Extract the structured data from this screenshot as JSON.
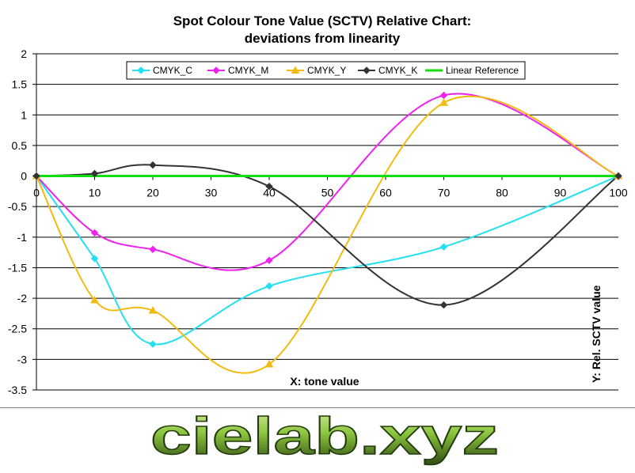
{
  "chart_data": {
    "type": "line",
    "title_lines": [
      "Spot Colour Tone Value (SCTV) Relative Chart:",
      "deviations from linearity"
    ],
    "xlabel": "X: tone value",
    "ylabel": "Y: Rel. SCTV value",
    "xlim": [
      0,
      100
    ],
    "ylim": [
      -3.5,
      2
    ],
    "x_ticks": [
      "0",
      "10",
      "20",
      "30",
      "40",
      "50",
      "60",
      "70",
      "80",
      "90",
      "100"
    ],
    "y_ticks": [
      "2",
      "1.5",
      "1",
      "0.5",
      "0",
      "-0.5",
      "-1",
      "-1.5",
      "-2",
      "-2.5",
      "-3",
      "-3.5"
    ],
    "grid": "horizontal",
    "legend_position": "top",
    "markers_x": [
      0,
      10,
      20,
      40,
      70,
      100
    ],
    "series": [
      {
        "name": "CMYK_C",
        "color": "#22e0f0",
        "marker": "diamond",
        "x": [
          0,
          10,
          20,
          40,
          70,
          100
        ],
        "y": [
          0,
          -1.35,
          -2.75,
          -1.8,
          -1.16,
          0
        ]
      },
      {
        "name": "CMYK_M",
        "color": "#ee22ee",
        "marker": "diamond",
        "x": [
          0,
          10,
          20,
          40,
          70,
          100
        ],
        "y": [
          0,
          -0.93,
          -1.2,
          -1.38,
          1.32,
          0
        ]
      },
      {
        "name": "CMYK_Y",
        "color": "#f2bb11",
        "marker": "triangle",
        "x": [
          0,
          10,
          20,
          40,
          70,
          100
        ],
        "y": [
          0,
          -2.03,
          -2.2,
          -3.08,
          1.2,
          0
        ]
      },
      {
        "name": "CMYK_K",
        "color": "#333333",
        "marker": "diamond",
        "x": [
          0,
          10,
          20,
          40,
          70,
          100
        ],
        "y": [
          0,
          0.04,
          0.18,
          -0.17,
          -2.11,
          0
        ]
      },
      {
        "name": "Linear Reference",
        "color": "#11dd11",
        "marker": "none",
        "x": [
          0,
          100
        ],
        "y": [
          0,
          0
        ]
      }
    ]
  },
  "brand": {
    "text": "cielab.xyz"
  }
}
